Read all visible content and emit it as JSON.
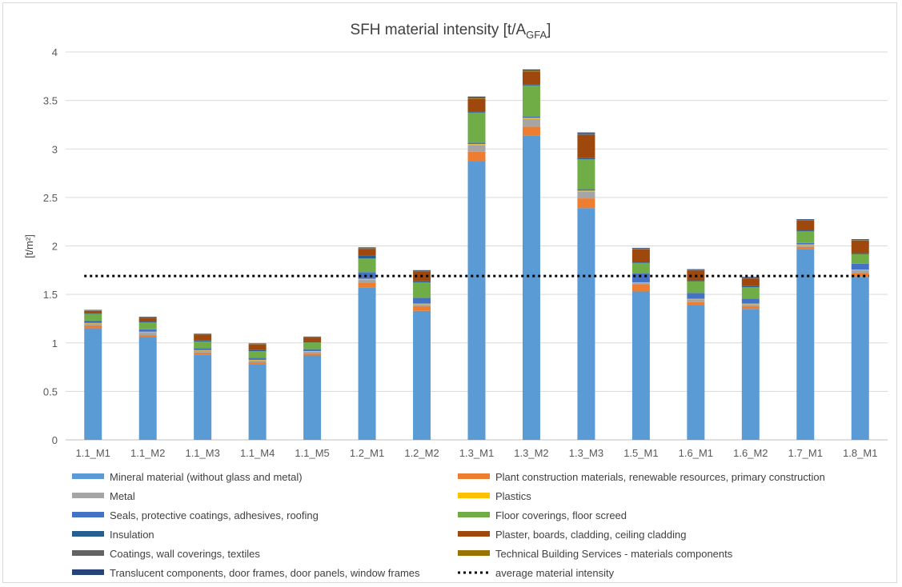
{
  "chart_data": {
    "type": "bar",
    "stacked": true,
    "title": "SFH material intensity [t/A",
    "title_subscript": "GFA",
    "title_suffix": "]",
    "ylabel": "[t/m²]",
    "ylim": [
      0,
      4
    ],
    "yticks": [
      "0",
      "0.5",
      "1",
      "1.5",
      "2",
      "2.5",
      "3",
      "3.5",
      "4"
    ],
    "grid": true,
    "legend_position": "bottom",
    "categories": [
      "1.1_M1",
      "1.1_M2",
      "1.1_M3",
      "1.1_M4",
      "1.1_M5",
      "1.2_M1",
      "1.2_M2",
      "1.3_M1",
      "1.3_M2",
      "1.3_M3",
      "1.5_M1",
      "1.6_M1",
      "1.6_M2",
      "1.7_M1",
      "1.8_M1"
    ],
    "series": [
      {
        "name": "Mineral material (without glass and metal)",
        "color": "#5b9bd5",
        "values": [
          1.15,
          1.06,
          0.88,
          0.78,
          0.87,
          1.57,
          1.33,
          2.87,
          3.14,
          2.39,
          1.53,
          1.39,
          1.35,
          1.97,
          1.68
        ]
      },
      {
        "name": "Plant construction materials, renewable resources, primary construction",
        "color": "#ed7d31",
        "values": [
          0.03,
          0.02,
          0.02,
          0.02,
          0.02,
          0.05,
          0.05,
          0.1,
          0.09,
          0.1,
          0.07,
          0.03,
          0.03,
          0.02,
          0.04
        ]
      },
      {
        "name": "Metal",
        "color": "#a5a5a5",
        "values": [
          0.02,
          0.03,
          0.02,
          0.02,
          0.02,
          0.03,
          0.02,
          0.07,
          0.08,
          0.07,
          0.02,
          0.03,
          0.02,
          0.02,
          0.03
        ]
      },
      {
        "name": "Plastics",
        "color": "#ffc000",
        "values": [
          0.005,
          0.005,
          0.005,
          0.005,
          0.005,
          0.01,
          0.005,
          0.01,
          0.01,
          0.01,
          0.005,
          0.005,
          0.005,
          0.005,
          0.005
        ]
      },
      {
        "name": "Seals, protective coatings, adhesives, roofing",
        "color": "#4472c4",
        "values": [
          0.025,
          0.025,
          0.02,
          0.02,
          0.02,
          0.07,
          0.06,
          0.015,
          0.015,
          0.015,
          0.09,
          0.06,
          0.05,
          0.015,
          0.06
        ]
      },
      {
        "name": "Floor coverings, floor screed",
        "color": "#70ad47",
        "values": [
          0.07,
          0.07,
          0.07,
          0.07,
          0.07,
          0.14,
          0.16,
          0.31,
          0.32,
          0.31,
          0.11,
          0.12,
          0.12,
          0.12,
          0.1
        ]
      },
      {
        "name": "Insulation",
        "color": "#255e91",
        "values": [
          0.01,
          0.01,
          0.01,
          0.01,
          0.01,
          0.03,
          0.01,
          0.01,
          0.01,
          0.01,
          0.01,
          0.01,
          0.01,
          0.01,
          0.01
        ]
      },
      {
        "name": "Plaster, boards, cladding, ceiling cladding",
        "color": "#9e480e",
        "values": [
          0.02,
          0.04,
          0.06,
          0.06,
          0.04,
          0.07,
          0.1,
          0.13,
          0.13,
          0.24,
          0.13,
          0.1,
          0.08,
          0.1,
          0.13
        ]
      },
      {
        "name": "Coatings, wall coverings, textiles",
        "color": "#636363",
        "values": [
          0.003,
          0.003,
          0.003,
          0.003,
          0.003,
          0.005,
          0.005,
          0.01,
          0.01,
          0.01,
          0.005,
          0.005,
          0.005,
          0.005,
          0.005
        ]
      },
      {
        "name": "Technical Building Services - materials components",
        "color": "#997300",
        "values": [
          0.002,
          0.002,
          0.002,
          0.002,
          0.002,
          0.003,
          0.003,
          0.005,
          0.005,
          0.005,
          0.003,
          0.003,
          0.003,
          0.003,
          0.003
        ]
      },
      {
        "name": "Translucent components, door frames, door panels, window frames",
        "color": "#264478",
        "values": [
          0.005,
          0.005,
          0.005,
          0.005,
          0.005,
          0.007,
          0.007,
          0.01,
          0.01,
          0.01,
          0.007,
          0.007,
          0.007,
          0.007,
          0.007
        ]
      }
    ],
    "average_line": {
      "name": "average material intensity",
      "value": 1.69,
      "color": "#000000"
    }
  }
}
